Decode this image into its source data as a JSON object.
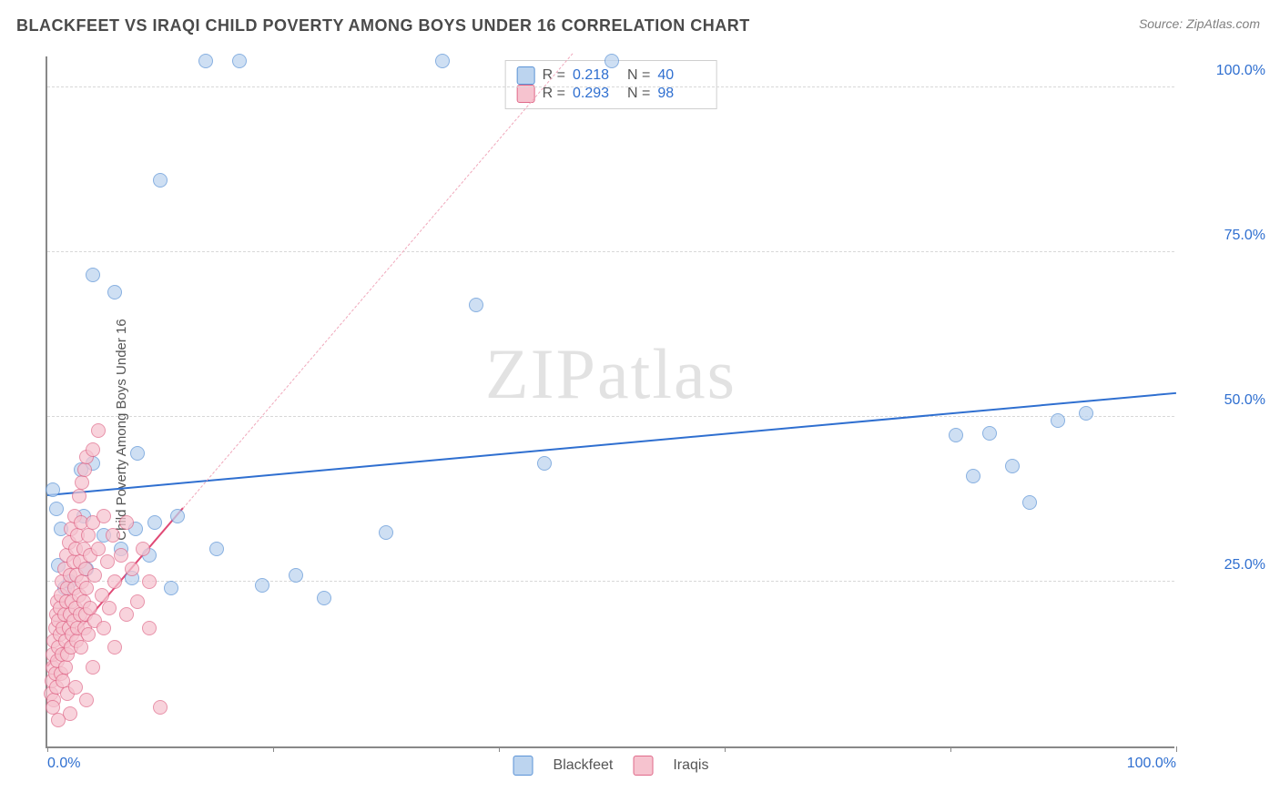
{
  "title": "BLACKFEET VS IRAQI CHILD POVERTY AMONG BOYS UNDER 16 CORRELATION CHART",
  "source_label": "Source: ",
  "source_name": "ZipAtlas.com",
  "ylabel": "Child Poverty Among Boys Under 16",
  "watermark_a": "ZIP",
  "watermark_b": "atlas",
  "chart": {
    "type": "scatter",
    "xlim": [
      0,
      100
    ],
    "ylim": [
      0,
      105
    ],
    "background_color": "#ffffff",
    "grid_color": "#d8d8d8",
    "axis_color": "#888888",
    "tick_label_color": "#2f6fd0",
    "tick_fontsize": 16,
    "y_ticks": [
      25,
      50,
      75,
      100
    ],
    "y_tick_labels": [
      "25.0%",
      "50.0%",
      "75.0%",
      "100.0%"
    ],
    "x_ticks": [
      0,
      20,
      40,
      60,
      80,
      100
    ],
    "x_tick_visible_labels": {
      "0": "0.0%",
      "100": "100.0%"
    },
    "marker_radius": 8,
    "marker_border_width": 1.5,
    "series": [
      {
        "name": "Blackfeet",
        "fill": "#bcd4ef",
        "stroke": "#5b93d6",
        "fill_opacity": 0.72,
        "r": 0.218,
        "n": 40,
        "trend": {
          "x1": 0,
          "y1": 38,
          "x2": 100,
          "y2": 53.5,
          "color": "#2f6fd0",
          "style": "solid",
          "extrapolate": {
            "x1": 0,
            "x2": 100
          }
        },
        "points": [
          [
            0.5,
            39
          ],
          [
            0.8,
            36
          ],
          [
            1,
            27.5
          ],
          [
            1.2,
            33
          ],
          [
            1.5,
            24
          ],
          [
            3,
            42
          ],
          [
            3.2,
            35
          ],
          [
            4,
            43
          ],
          [
            4,
            71.5
          ],
          [
            5,
            32
          ],
          [
            6,
            69
          ],
          [
            7.5,
            25.5
          ],
          [
            7.8,
            33
          ],
          [
            8,
            44.5
          ],
          [
            9,
            29
          ],
          [
            9.5,
            34
          ],
          [
            10,
            86
          ],
          [
            11,
            24
          ],
          [
            11.5,
            35
          ],
          [
            14,
            104
          ],
          [
            15,
            30
          ],
          [
            17,
            104
          ],
          [
            19,
            24.5
          ],
          [
            22,
            26
          ],
          [
            24.5,
            22.5
          ],
          [
            30,
            32.5
          ],
          [
            35,
            104
          ],
          [
            38,
            67
          ],
          [
            44,
            43
          ],
          [
            50,
            104
          ],
          [
            80.5,
            47.3
          ],
          [
            82,
            41
          ],
          [
            83.5,
            47.5
          ],
          [
            85.5,
            42.5
          ],
          [
            87,
            37
          ],
          [
            89.5,
            49.5
          ],
          [
            92,
            50.5
          ],
          [
            3.5,
            27
          ],
          [
            6.5,
            30
          ],
          [
            2,
            25
          ]
        ]
      },
      {
        "name": "Iraqis",
        "fill": "#f6c3cf",
        "stroke": "#e06a8a",
        "fill_opacity": 0.72,
        "r": 0.293,
        "n": 98,
        "trend": {
          "x1": 0,
          "y1": 12,
          "x2": 12,
          "y2": 36,
          "color": "#e04a76",
          "style": "solid",
          "extrapolate": {
            "x1": 12,
            "x2": 70,
            "style": "dashed",
            "color": "#f0a8bb"
          }
        },
        "points": [
          [
            0.3,
            8
          ],
          [
            0.4,
            10
          ],
          [
            0.5,
            12
          ],
          [
            0.5,
            14
          ],
          [
            0.6,
            7
          ],
          [
            0.6,
            16
          ],
          [
            0.7,
            18
          ],
          [
            0.7,
            11
          ],
          [
            0.8,
            20
          ],
          [
            0.8,
            9
          ],
          [
            0.9,
            22
          ],
          [
            0.9,
            13
          ],
          [
            1.0,
            15
          ],
          [
            1.0,
            19
          ],
          [
            1.1,
            17
          ],
          [
            1.1,
            21
          ],
          [
            1.2,
            11
          ],
          [
            1.2,
            23
          ],
          [
            1.3,
            14
          ],
          [
            1.3,
            25
          ],
          [
            1.4,
            18
          ],
          [
            1.4,
            10
          ],
          [
            1.5,
            20
          ],
          [
            1.5,
            27
          ],
          [
            1.6,
            12
          ],
          [
            1.6,
            16
          ],
          [
            1.7,
            22
          ],
          [
            1.7,
            29
          ],
          [
            1.8,
            14
          ],
          [
            1.8,
            24
          ],
          [
            1.9,
            18
          ],
          [
            1.9,
            31
          ],
          [
            2.0,
            20
          ],
          [
            2.0,
            26
          ],
          [
            2.1,
            15
          ],
          [
            2.1,
            33
          ],
          [
            2.2,
            22
          ],
          [
            2.2,
            17
          ],
          [
            2.3,
            28
          ],
          [
            2.3,
            19
          ],
          [
            2.4,
            24
          ],
          [
            2.4,
            35
          ],
          [
            2.5,
            21
          ],
          [
            2.5,
            30
          ],
          [
            2.6,
            16
          ],
          [
            2.6,
            26
          ],
          [
            2.7,
            32
          ],
          [
            2.7,
            18
          ],
          [
            2.8,
            23
          ],
          [
            2.8,
            38
          ],
          [
            2.9,
            20
          ],
          [
            2.9,
            28
          ],
          [
            3.0,
            34
          ],
          [
            3.0,
            15
          ],
          [
            3.1,
            25
          ],
          [
            3.1,
            40
          ],
          [
            3.2,
            22
          ],
          [
            3.2,
            30
          ],
          [
            3.3,
            18
          ],
          [
            3.3,
            42
          ],
          [
            3.4,
            27
          ],
          [
            3.4,
            20
          ],
          [
            3.5,
            44
          ],
          [
            3.5,
            24
          ],
          [
            3.6,
            32
          ],
          [
            3.6,
            17
          ],
          [
            3.8,
            29
          ],
          [
            3.8,
            21
          ],
          [
            4.0,
            34
          ],
          [
            4.0,
            45
          ],
          [
            4.2,
            26
          ],
          [
            4.2,
            19
          ],
          [
            4.5,
            48
          ],
          [
            4.5,
            30
          ],
          [
            4.8,
            23
          ],
          [
            5.0,
            35
          ],
          [
            5.0,
            18
          ],
          [
            5.3,
            28
          ],
          [
            5.5,
            21
          ],
          [
            5.8,
            32
          ],
          [
            6.0,
            25
          ],
          [
            6.0,
            15
          ],
          [
            6.5,
            29
          ],
          [
            7.0,
            20
          ],
          [
            7.0,
            34
          ],
          [
            7.5,
            27
          ],
          [
            8.0,
            22
          ],
          [
            8.5,
            30
          ],
          [
            9.0,
            18
          ],
          [
            9.0,
            25
          ],
          [
            10.0,
            6
          ],
          [
            2.0,
            5
          ],
          [
            3.5,
            7
          ],
          [
            1.0,
            4
          ],
          [
            4.0,
            12
          ],
          [
            0.5,
            6
          ],
          [
            1.8,
            8
          ],
          [
            2.5,
            9
          ]
        ]
      }
    ]
  },
  "stats_legend": {
    "r_label": "R =",
    "n_label": "N ="
  },
  "bottom_legend": {
    "items": [
      "Blackfeet",
      "Iraqis"
    ]
  }
}
